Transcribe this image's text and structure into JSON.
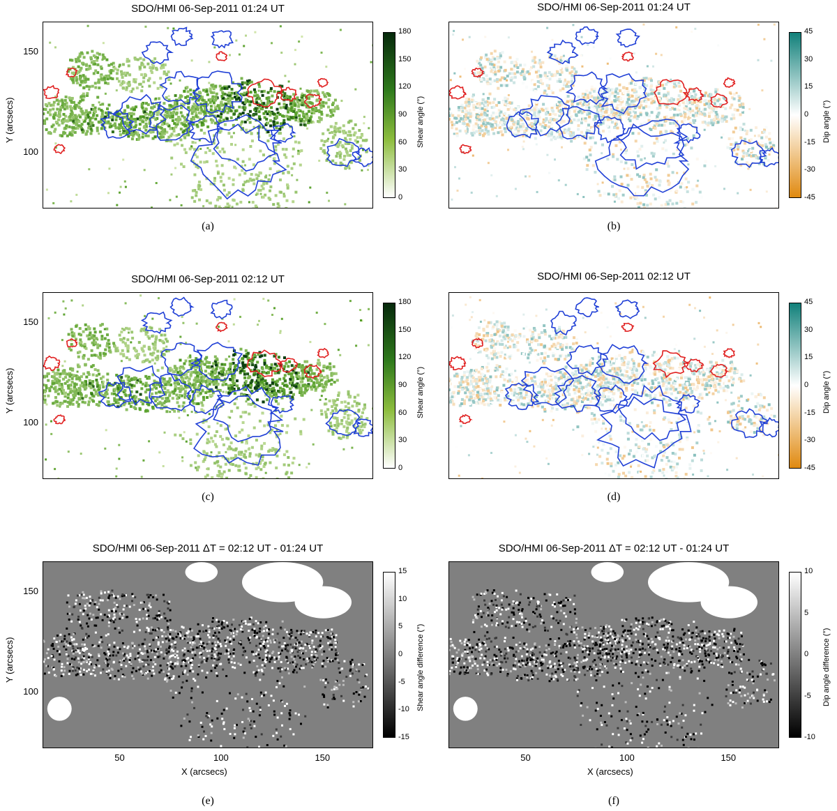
{
  "panels": [
    {
      "id": "a",
      "title": "SDO/HMI 06-Sep-2011 01:24 UT",
      "caption": "(a)",
      "kind": "shear",
      "cb_label": "Shear angle (°)",
      "cb_ticks": [
        "180",
        "150",
        "120",
        "90",
        "60",
        "30",
        "0"
      ],
      "show_y": true,
      "show_x": false
    },
    {
      "id": "b",
      "title": "SDO/HMI 06-Sep-2011 01:24 UT",
      "caption": "(b)",
      "kind": "dip",
      "cb_label": "Dip angle (°)",
      "cb_ticks": [
        "45",
        "30",
        "15",
        "0",
        "-15",
        "-30",
        "-45"
      ],
      "show_y": false,
      "show_x": false
    },
    {
      "id": "c",
      "title": "SDO/HMI 06-Sep-2011 02:12 UT",
      "caption": "(c)",
      "kind": "shear",
      "cb_label": "Shear angle (°)",
      "cb_ticks": [
        "180",
        "150",
        "120",
        "90",
        "60",
        "30",
        "0"
      ],
      "show_y": true,
      "show_x": false
    },
    {
      "id": "d",
      "title": "SDO/HMI 06-Sep-2011 02:12 UT",
      "caption": "(d)",
      "kind": "dip",
      "cb_label": "Dip angle (°)",
      "cb_ticks": [
        "45",
        "30",
        "15",
        "0",
        "-15",
        "-30",
        "-45"
      ],
      "show_y": false,
      "show_x": false
    },
    {
      "id": "e",
      "title": "SDO/HMI 06-Sep-2011  ΔT = 02:12 UT - 01:24 UT",
      "caption": "(e)",
      "kind": "diff",
      "cb_label": "Shear angle difference (°)",
      "cb_ticks": [
        "15",
        "10",
        "5",
        "0",
        "-5",
        "-10",
        "-15"
      ],
      "show_y": true,
      "show_x": true
    },
    {
      "id": "f",
      "title": "SDO/HMI 06-Sep-2011  ΔT = 02:12 UT - 01:24 UT",
      "caption": "(f)",
      "kind": "diff",
      "cb_label": "Dip angle difference (°)",
      "cb_ticks": [
        "10",
        "5",
        "0",
        "-5",
        "-10"
      ],
      "show_y": false,
      "show_x": true
    }
  ],
  "axes": {
    "ylabel": "Y (arcsecs)",
    "xlabel": "X (arcsecs)",
    "yticks": [
      "150",
      "100"
    ],
    "xticks": [
      "50",
      "100",
      "150"
    ]
  },
  "chart_data": [
    {
      "type": "heatmap",
      "panel": "a",
      "title": "SDO/HMI 06-Sep-2011 01:24 UT",
      "xlabel": "",
      "ylabel": "Y (arcsecs)",
      "colorbar": "Shear angle (°)",
      "crange": [
        0,
        180
      ],
      "ylim": [
        72,
        165
      ],
      "xlim": [
        12,
        175
      ]
    },
    {
      "type": "heatmap",
      "panel": "b",
      "title": "SDO/HMI 06-Sep-2011 01:24 UT",
      "xlabel": "",
      "ylabel": "",
      "colorbar": "Dip angle (°)",
      "crange": [
        -45,
        45
      ],
      "ylim": [
        72,
        165
      ],
      "xlim": [
        12,
        175
      ]
    },
    {
      "type": "heatmap",
      "panel": "c",
      "title": "SDO/HMI 06-Sep-2011 02:12 UT",
      "xlabel": "",
      "ylabel": "Y (arcsecs)",
      "colorbar": "Shear angle (°)",
      "crange": [
        0,
        180
      ],
      "ylim": [
        72,
        165
      ],
      "xlim": [
        12,
        175
      ]
    },
    {
      "type": "heatmap",
      "panel": "d",
      "title": "SDO/HMI 06-Sep-2011 02:12 UT",
      "xlabel": "",
      "ylabel": "",
      "colorbar": "Dip angle (°)",
      "crange": [
        -45,
        45
      ],
      "ylim": [
        72,
        165
      ],
      "xlim": [
        12,
        175
      ]
    },
    {
      "type": "heatmap",
      "panel": "e",
      "title": "SDO/HMI 06-Sep-2011  ΔT = 02:12 UT - 01:24 UT",
      "xlabel": "X (arcsecs)",
      "ylabel": "Y (arcsecs)",
      "colorbar": "Shear angle difference (°)",
      "crange": [
        -15,
        15
      ],
      "ylim": [
        72,
        165
      ],
      "xlim": [
        12,
        175
      ]
    },
    {
      "type": "heatmap",
      "panel": "f",
      "title": "SDO/HMI 06-Sep-2011  ΔT = 02:12 UT - 01:24 UT",
      "xlabel": "X (arcsecs)",
      "ylabel": "",
      "colorbar": "Dip angle difference (°)",
      "crange": [
        -10,
        10
      ],
      "ylim": [
        72,
        165
      ],
      "xlim": [
        12,
        175
      ]
    }
  ],
  "colors": {
    "contour_negative": "#1f3fd6",
    "contour_positive": "#e02020",
    "shear_dark": "#0b3d12",
    "shear_mid": "#4f9b22",
    "shear_light": "#d6e8b0",
    "dip_pos": "#11807a",
    "dip_neg": "#e08a10",
    "diff_bg": "#808080"
  }
}
